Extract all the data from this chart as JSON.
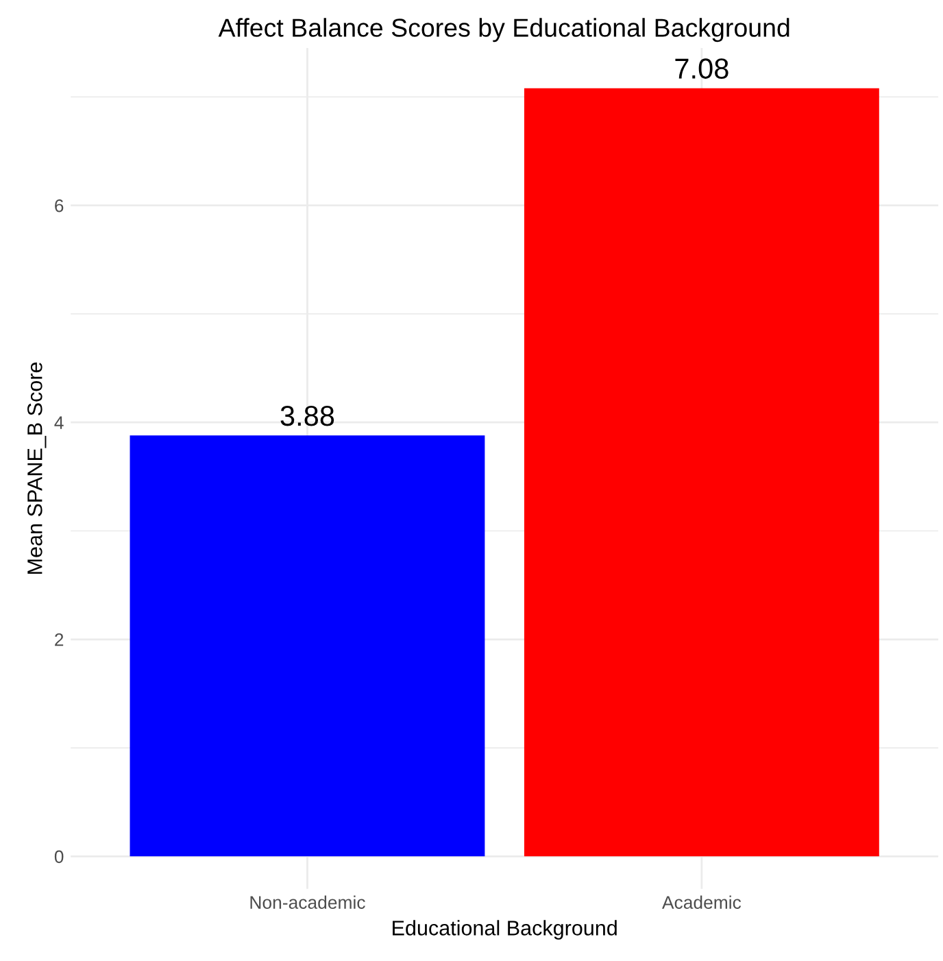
{
  "chart_data": {
    "type": "bar",
    "title": "Affect Balance Scores by Educational Background",
    "xlabel": "Educational Background",
    "ylabel": "Mean SPANE_B Score",
    "categories": [
      "Non-academic",
      "Academic"
    ],
    "values": [
      3.88,
      7.08
    ],
    "colors": [
      "#0000ff",
      "#ff0000"
    ],
    "ylim": [
      -0.3,
      7.45
    ],
    "yticks": [
      0,
      {
        "value": 1,
        "label": null
      },
      2,
      {
        "value": 3,
        "label": null
      },
      4,
      {
        "value": 5,
        "label": null
      },
      6,
      {
        "value": 7,
        "label": null
      }
    ],
    "grid": true,
    "data_labels": true,
    "legend": false
  }
}
